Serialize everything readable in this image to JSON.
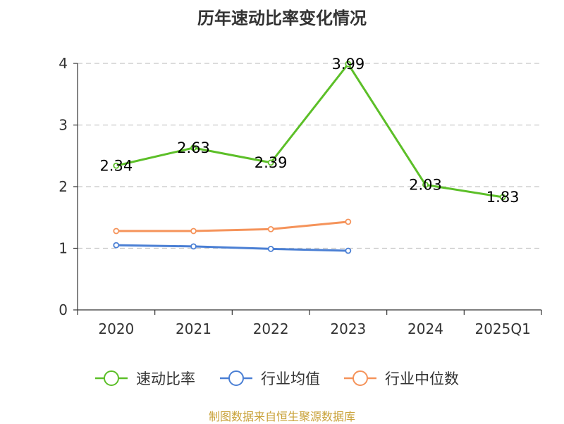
{
  "title": "历年速动比率变化情况",
  "source": "制图数据来自恒生聚源数据库",
  "chart_data": {
    "type": "line",
    "title": "历年速动比率变化情况",
    "categories": [
      "2020",
      "2021",
      "2022",
      "2023",
      "2024",
      "2025Q1"
    ],
    "ylim": [
      0,
      4
    ],
    "yticks": [
      0,
      1,
      2,
      3,
      4
    ],
    "grid": true,
    "legend_position": "bottom",
    "series": [
      {
        "name": "速动比率",
        "color": "#5cbf28",
        "values": [
          2.34,
          2.63,
          2.39,
          3.99,
          2.03,
          1.83
        ],
        "labels": [
          "2.34",
          "2.63",
          "2.39",
          "3.99",
          "2.03",
          "1.83"
        ]
      },
      {
        "name": "行业均值",
        "color": "#4a7fd4",
        "values": [
          1.05,
          1.03,
          0.99,
          0.96,
          null,
          null
        ]
      },
      {
        "name": "行业中位数",
        "color": "#f5935a",
        "values": [
          1.28,
          1.28,
          1.31,
          1.43,
          null,
          null
        ]
      }
    ]
  }
}
